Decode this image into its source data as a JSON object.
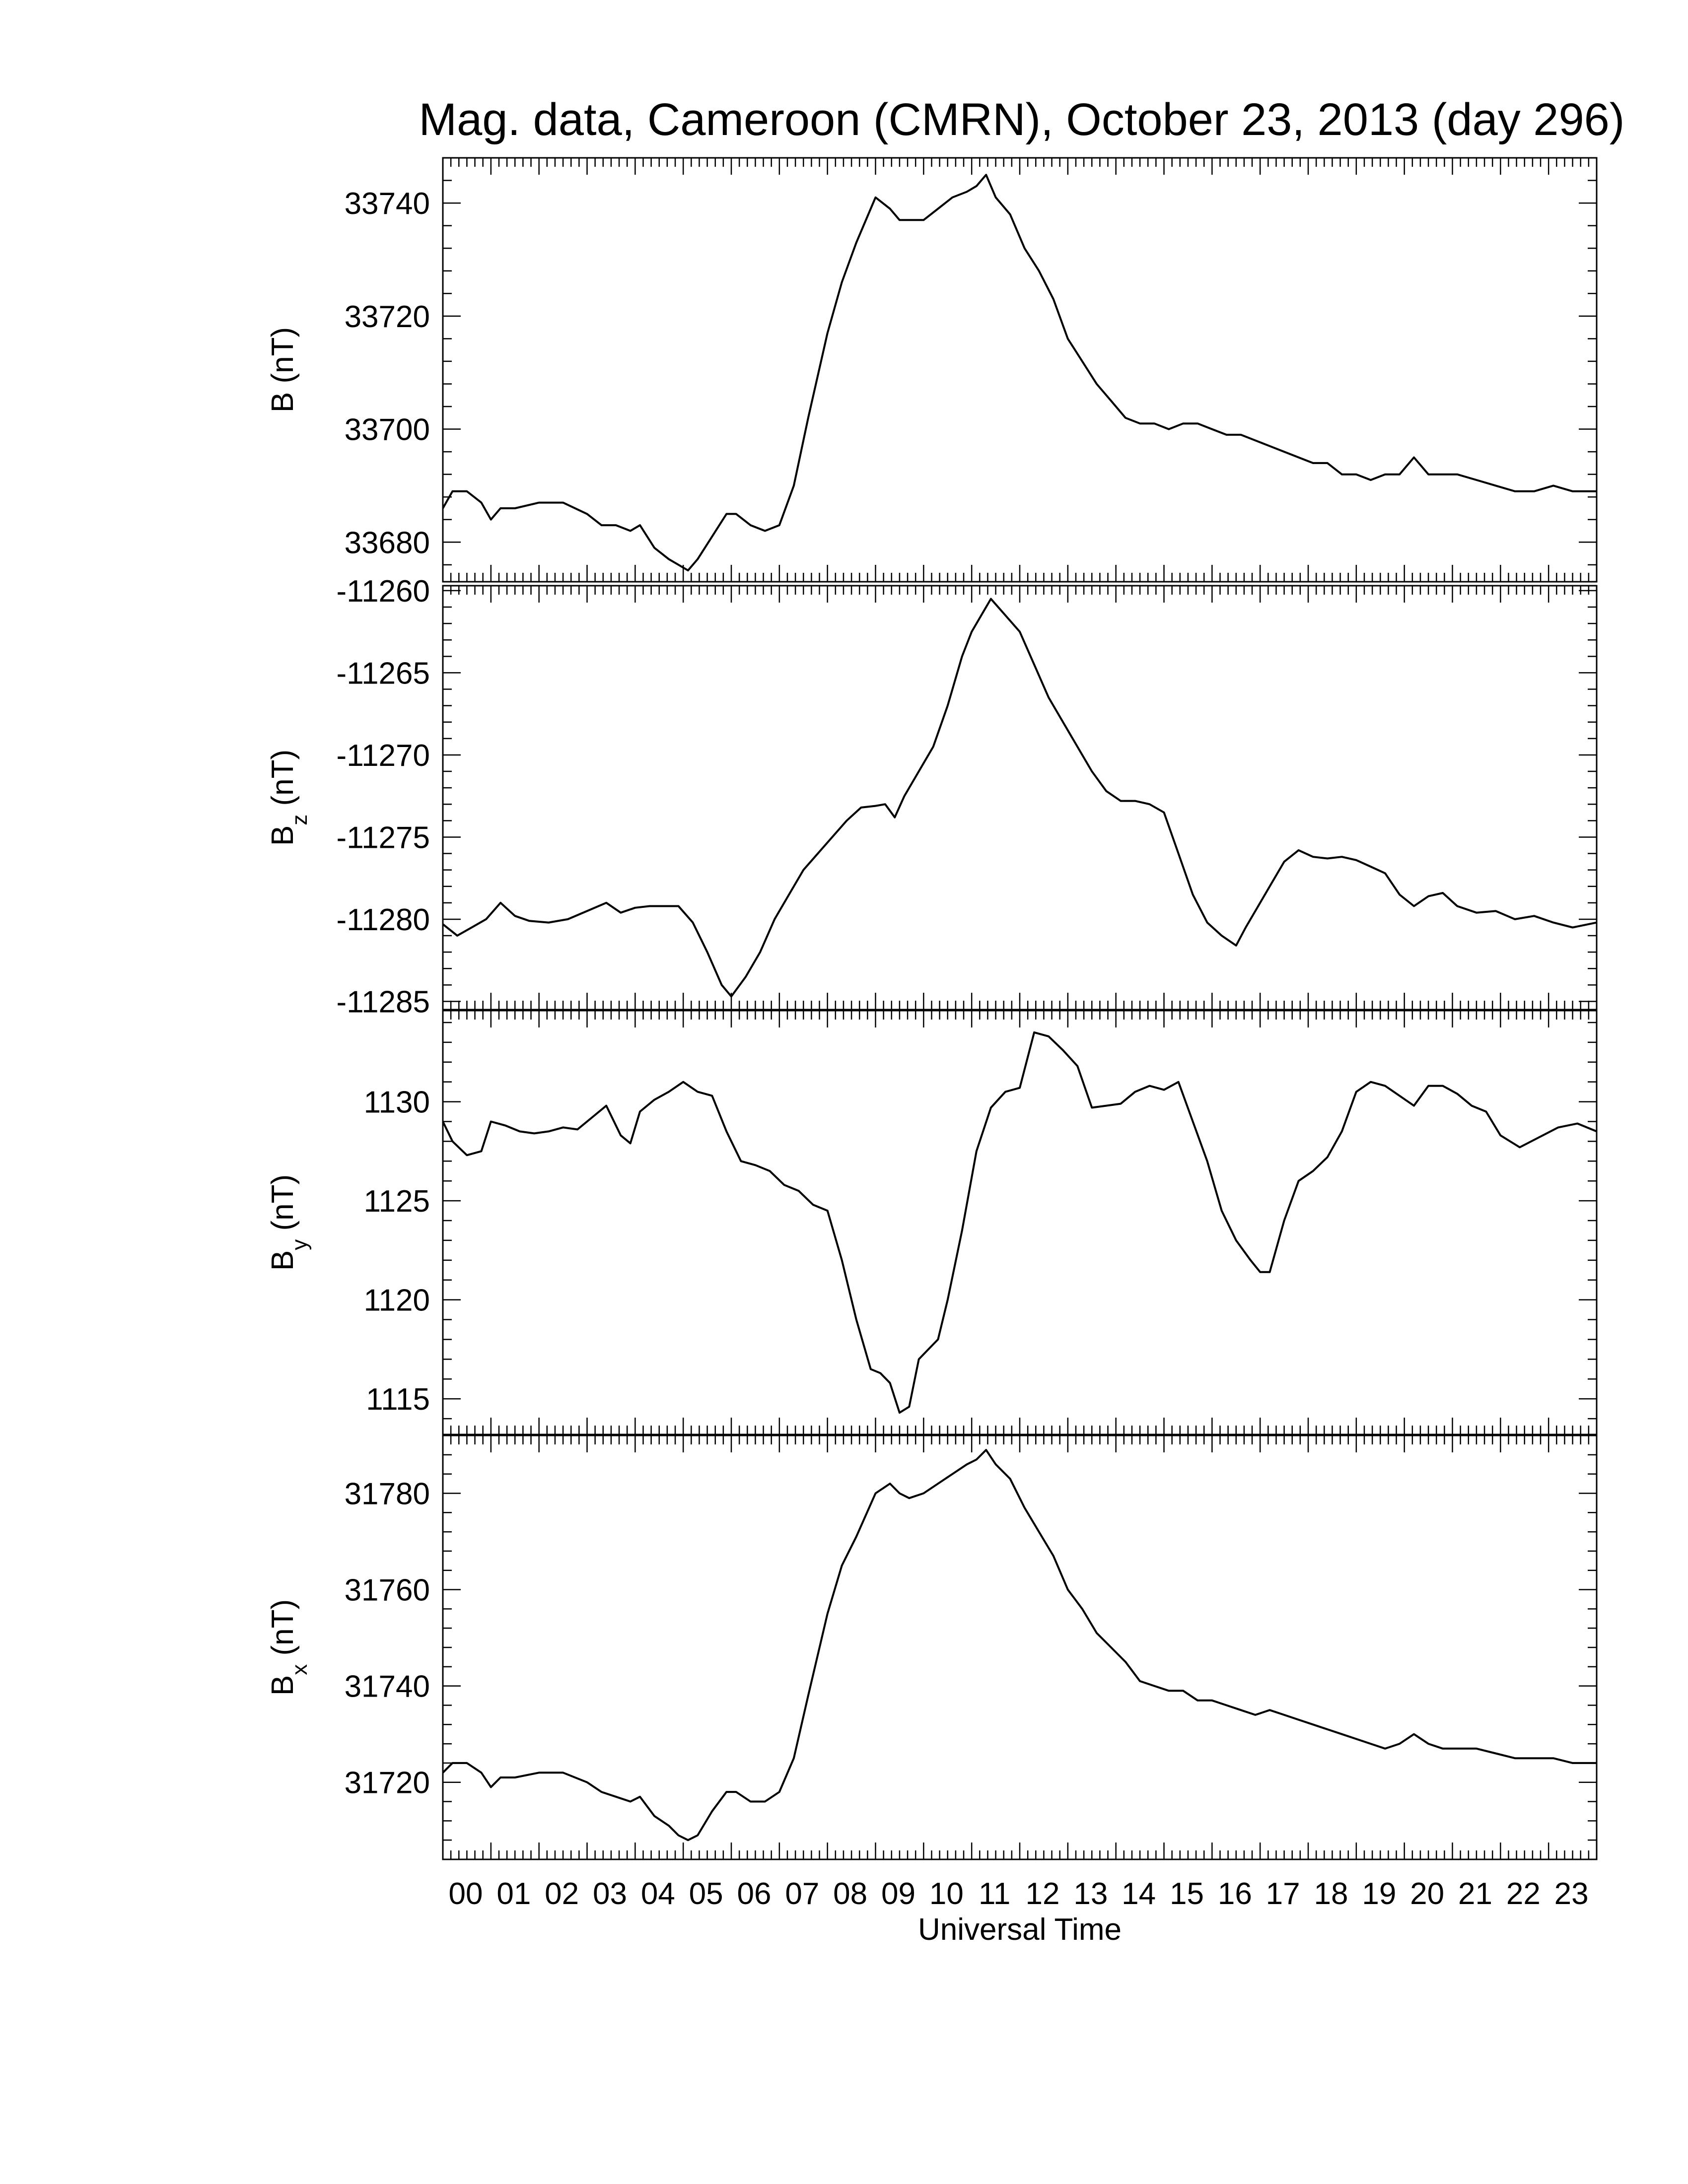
{
  "title": "Mag. data, Cameroon (CMRN), October 23, 2013 (day 296)",
  "colors": {
    "line": "#000000",
    "background": "#ffffff"
  },
  "chart_data": [
    {
      "type": "line",
      "name": "B",
      "ylabel": {
        "main": "B",
        "sub": "",
        "unit": "(nT)"
      },
      "ylim": [
        33673,
        33748
      ],
      "yticks": [
        33680,
        33700,
        33720,
        33740
      ],
      "ytick_labels": [
        "33680",
        "33700",
        "33720",
        "33740"
      ],
      "x": [
        0,
        0.2,
        0.5,
        0.8,
        1.0,
        1.2,
        1.5,
        2.0,
        2.5,
        3.0,
        3.3,
        3.6,
        3.9,
        4.1,
        4.4,
        4.7,
        4.9,
        5.1,
        5.3,
        5.6,
        5.9,
        6.1,
        6.4,
        6.7,
        7.0,
        7.3,
        7.6,
        8.0,
        8.3,
        8.6,
        9.0,
        9.3,
        9.5,
        9.7,
        10.0,
        10.3,
        10.6,
        10.9,
        11.1,
        11.3,
        11.5,
        11.8,
        12.1,
        12.4,
        12.7,
        13.0,
        13.3,
        13.6,
        13.9,
        14.2,
        14.5,
        14.8,
        15.1,
        15.4,
        15.7,
        16.0,
        16.3,
        16.6,
        16.9,
        17.2,
        17.5,
        17.8,
        18.1,
        18.4,
        18.7,
        19.0,
        19.3,
        19.6,
        19.9,
        20.2,
        20.5,
        20.8,
        21.1,
        21.5,
        21.9,
        22.3,
        22.7,
        23.1,
        23.5,
        24.0
      ],
      "y": [
        33686,
        33689,
        33689,
        33687,
        33684,
        33686,
        33686,
        33687,
        33687,
        33685,
        33683,
        33683,
        33682,
        33683,
        33679,
        33677,
        33676,
        33675,
        33677,
        33681,
        33685,
        33685,
        33683,
        33682,
        33683,
        33690,
        33702,
        33717,
        33726,
        33733,
        33741,
        33739,
        33737,
        33737,
        33737,
        33739,
        33741,
        33742,
        33743,
        33745,
        33741,
        33738,
        33732,
        33728,
        33723,
        33716,
        33712,
        33708,
        33705,
        33702,
        33701,
        33701,
        33700,
        33701,
        33701,
        33700,
        33699,
        33699,
        33698,
        33697,
        33696,
        33695,
        33694,
        33694,
        33692,
        33692,
        33691,
        33692,
        33692,
        33695,
        33692,
        33692,
        33692,
        33691,
        33690,
        33689,
        33689,
        33690,
        33689,
        33689
      ]
    },
    {
      "type": "line",
      "name": "Bz",
      "ylabel": {
        "main": "B",
        "sub": "z",
        "unit": "(nT)"
      },
      "ylim": [
        -11285.5,
        -11259.7
      ],
      "yticks": [
        -11285,
        -11280,
        -11275,
        -11270,
        -11265,
        -11260
      ],
      "ytick_labels": [
        "-11285",
        "-11280",
        "-11275",
        "-11270",
        "-11265",
        "-11260"
      ],
      "x": [
        0,
        0.3,
        0.6,
        0.9,
        1.2,
        1.5,
        1.8,
        2.2,
        2.6,
        3.0,
        3.4,
        3.7,
        4.0,
        4.3,
        4.6,
        4.9,
        5.2,
        5.5,
        5.8,
        6.0,
        6.3,
        6.6,
        6.9,
        7.2,
        7.5,
        7.8,
        8.1,
        8.4,
        8.7,
        9.0,
        9.2,
        9.4,
        9.6,
        9.9,
        10.2,
        10.5,
        10.8,
        11.0,
        11.2,
        11.4,
        11.7,
        12.0,
        12.3,
        12.6,
        12.9,
        13.2,
        13.5,
        13.8,
        14.1,
        14.4,
        14.7,
        15.0,
        15.3,
        15.6,
        15.9,
        16.2,
        16.5,
        16.7,
        16.9,
        17.2,
        17.5,
        17.8,
        18.1,
        18.4,
        18.7,
        19.0,
        19.3,
        19.6,
        19.9,
        20.2,
        20.5,
        20.8,
        21.1,
        21.5,
        21.9,
        22.3,
        22.7,
        23.1,
        23.5,
        24.0
      ],
      "y": [
        -11280.3,
        -11281,
        -11280.5,
        -11280,
        -11279,
        -11279.8,
        -11280.1,
        -11280.2,
        -11280,
        -11279.5,
        -11279,
        -11279.6,
        -11279.3,
        -11279.2,
        -11279.2,
        -11279.2,
        -11280.2,
        -11282,
        -11284,
        -11284.7,
        -11283.5,
        -11282,
        -11280,
        -11278.5,
        -11277,
        -11276,
        -11275,
        -11274,
        -11273.2,
        -11273.1,
        -11273,
        -11273.8,
        -11272.5,
        -11271,
        -11269.5,
        -11267,
        -11264,
        -11262.5,
        -11261.5,
        -11260.5,
        -11261.5,
        -11262.5,
        -11264.5,
        -11266.5,
        -11268,
        -11269.5,
        -11271,
        -11272.2,
        -11272.8,
        -11272.8,
        -11273,
        -11273.5,
        -11276,
        -11278.5,
        -11280.2,
        -11281,
        -11281.6,
        -11280.5,
        -11279.5,
        -11278,
        -11276.5,
        -11275.8,
        -11276.2,
        -11276.3,
        -11276.2,
        -11276.4,
        -11276.8,
        -11277.2,
        -11278.5,
        -11279.2,
        -11278.6,
        -11278.4,
        -11279.2,
        -11279.6,
        -11279.5,
        -11280,
        -11279.8,
        -11280.2,
        -11280.5,
        -11280.2
      ]
    },
    {
      "type": "line",
      "name": "By",
      "ylabel": {
        "main": "B",
        "sub": "y",
        "unit": "(nT)"
      },
      "ylim": [
        1113.2,
        1134.6
      ],
      "yticks": [
        1115,
        1120,
        1125,
        1130
      ],
      "ytick_labels": [
        "1115",
        "1120",
        "1125",
        "1130"
      ],
      "x": [
        0,
        0.2,
        0.5,
        0.8,
        1.0,
        1.3,
        1.6,
        1.9,
        2.2,
        2.5,
        2.8,
        3.1,
        3.4,
        3.7,
        3.9,
        4.1,
        4.4,
        4.7,
        5.0,
        5.3,
        5.6,
        5.9,
        6.2,
        6.5,
        6.8,
        7.1,
        7.4,
        7.7,
        8.0,
        8.3,
        8.6,
        8.9,
        9.1,
        9.3,
        9.5,
        9.7,
        9.9,
        10.1,
        10.3,
        10.5,
        10.8,
        11.1,
        11.4,
        11.7,
        12.0,
        12.3,
        12.6,
        12.9,
        13.2,
        13.5,
        13.8,
        14.1,
        14.4,
        14.7,
        15.0,
        15.3,
        15.6,
        15.9,
        16.2,
        16.5,
        16.8,
        17.0,
        17.2,
        17.5,
        17.8,
        18.1,
        18.4,
        18.7,
        19.0,
        19.3,
        19.6,
        19.9,
        20.2,
        20.5,
        20.8,
        21.1,
        21.4,
        21.7,
        22.0,
        22.4,
        22.8,
        23.2,
        23.6,
        24.0
      ],
      "y": [
        1129,
        1128,
        1127.3,
        1127.5,
        1129,
        1128.8,
        1128.5,
        1128.4,
        1128.5,
        1128.7,
        1128.6,
        1129.2,
        1129.8,
        1128.3,
        1127.9,
        1129.5,
        1130.1,
        1130.5,
        1131,
        1130.5,
        1130.3,
        1128.5,
        1127,
        1126.8,
        1126.5,
        1125.8,
        1125.5,
        1124.8,
        1124.5,
        1122,
        1119,
        1116.5,
        1116.3,
        1115.8,
        1114.3,
        1114.6,
        1117,
        1117.5,
        1118,
        1120,
        1123.5,
        1127.5,
        1129.7,
        1130.5,
        1130.7,
        1133.5,
        1133.3,
        1132.6,
        1131.8,
        1129.7,
        1129.8,
        1129.9,
        1130.5,
        1130.8,
        1130.6,
        1131,
        1129,
        1127,
        1124.5,
        1123,
        1122,
        1121.4,
        1121.4,
        1124,
        1126,
        1126.5,
        1127.2,
        1128.5,
        1130.5,
        1131,
        1130.8,
        1130.3,
        1129.8,
        1130.8,
        1130.8,
        1130.4,
        1129.8,
        1129.5,
        1128.3,
        1127.7,
        1128.2,
        1128.7,
        1128.9,
        1128.5
      ]
    },
    {
      "type": "line",
      "name": "Bx",
      "ylabel": {
        "main": "B",
        "sub": "x",
        "unit": "(nT)"
      },
      "ylim": [
        31704,
        31792
      ],
      "yticks": [
        31720,
        31740,
        31760,
        31780
      ],
      "ytick_labels": [
        "31720",
        "31740",
        "31760",
        "31780"
      ],
      "x": [
        0,
        0.2,
        0.5,
        0.8,
        1.0,
        1.2,
        1.5,
        2.0,
        2.5,
        3.0,
        3.3,
        3.6,
        3.9,
        4.1,
        4.4,
        4.7,
        4.9,
        5.1,
        5.3,
        5.6,
        5.9,
        6.1,
        6.4,
        6.7,
        7.0,
        7.3,
        7.6,
        8.0,
        8.3,
        8.6,
        9.0,
        9.3,
        9.5,
        9.7,
        10.0,
        10.3,
        10.6,
        10.9,
        11.1,
        11.3,
        11.5,
        11.8,
        12.1,
        12.4,
        12.7,
        13.0,
        13.3,
        13.6,
        13.9,
        14.2,
        14.5,
        14.8,
        15.1,
        15.4,
        15.7,
        16.0,
        16.3,
        16.6,
        16.9,
        17.2,
        17.5,
        17.8,
        18.1,
        18.4,
        18.7,
        19.0,
        19.3,
        19.6,
        19.9,
        20.2,
        20.5,
        20.8,
        21.1,
        21.5,
        21.9,
        22.3,
        22.7,
        23.1,
        23.5,
        24.0
      ],
      "y": [
        31722,
        31724,
        31724,
        31722,
        31719,
        31721,
        31721,
        31722,
        31722,
        31720,
        31718,
        31717,
        31716,
        31717,
        31713,
        31711,
        31709,
        31708,
        31709,
        31714,
        31718,
        31718,
        31716,
        31716,
        31718,
        31725,
        31738,
        31755,
        31765,
        31771,
        31780,
        31782,
        31780,
        31779,
        31780,
        31782,
        31784,
        31786,
        31787,
        31789,
        31786,
        31783,
        31777,
        31772,
        31767,
        31760,
        31756,
        31751,
        31748,
        31745,
        31741,
        31740,
        31739,
        31739,
        31737,
        31737,
        31736,
        31735,
        31734,
        31735,
        31734,
        31733,
        31732,
        31731,
        31730,
        31729,
        31728,
        31727,
        31728,
        31730,
        31728,
        31727,
        31727,
        31727,
        31726,
        31725,
        31725,
        31725,
        31724,
        31724
      ]
    }
  ],
  "xaxis": {
    "label": "Universal Time",
    "ticks": [
      0,
      1,
      2,
      3,
      4,
      5,
      6,
      7,
      8,
      9,
      10,
      11,
      12,
      13,
      14,
      15,
      16,
      17,
      18,
      19,
      20,
      21,
      22,
      23
    ],
    "tick_labels": [
      "00",
      "01",
      "02",
      "03",
      "04",
      "05",
      "06",
      "07",
      "08",
      "09",
      "10",
      "11",
      "12",
      "13",
      "14",
      "15",
      "16",
      "17",
      "18",
      "19",
      "20",
      "21",
      "22",
      "23"
    ],
    "range": [
      0,
      24
    ]
  }
}
